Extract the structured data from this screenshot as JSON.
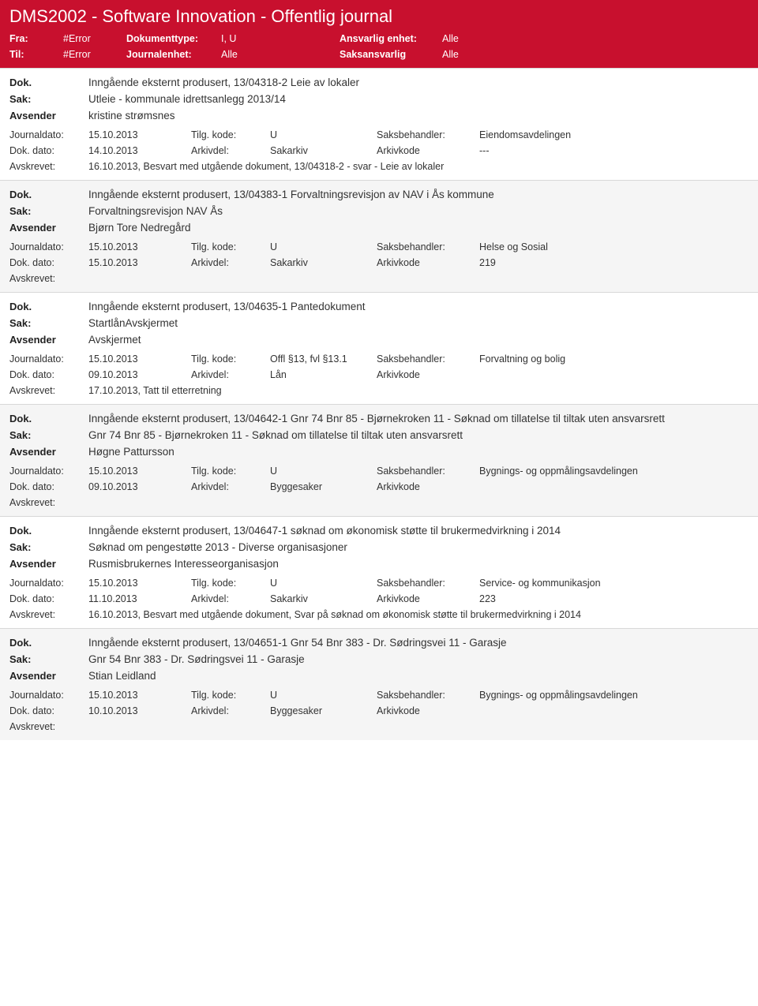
{
  "header": {
    "title": "DMS2002 - Software Innovation - Offentlig journal",
    "filters": {
      "fra_label": "Fra:",
      "fra_value": "#Error",
      "til_label": "Til:",
      "til_value": "#Error",
      "doktype_label": "Dokumenttype:",
      "doktype_value": "I, U",
      "journalenhet_label": "Journalenhet:",
      "journalenhet_value": "Alle",
      "ansvarlig_label": "Ansvarlig enhet:",
      "ansvarlig_value": "Alle",
      "saksansvarlig_label": "Saksansvarlig",
      "saksansvarlig_value": "Alle"
    }
  },
  "labels": {
    "dok": "Dok.",
    "sak": "Sak:",
    "avsender": "Avsender",
    "journaldato": "Journaldato:",
    "dokdato": "Dok. dato:",
    "avskrevet": "Avskrevet:",
    "tilgkode": "Tilg. kode:",
    "arkivdel": "Arkivdel:",
    "saksbehandler": "Saksbehandler:",
    "arkivkode": "Arkivkode"
  },
  "entries": [
    {
      "alt": false,
      "dok": "Inngående eksternt produsert, 13/04318-2 Leie av lokaler",
      "sak": "Utleie - kommunale idrettsanlegg 2013/14",
      "avsender": "kristine strømsnes",
      "journaldato": "15.10.2013",
      "tilgkode": "U",
      "saksbehandler": "Eiendomsavdelingen",
      "dokdato": "14.10.2013",
      "arkivdel": "Sakarkiv",
      "arkivkode": "---",
      "avskrevet": "16.10.2013, Besvart med utgående dokument, 13/04318-2 - svar - Leie av lokaler"
    },
    {
      "alt": true,
      "dok": "Inngående eksternt produsert, 13/04383-1 Forvaltningsrevisjon av NAV i Ås kommune",
      "sak": "Forvaltningsrevisjon NAV Ås",
      "avsender": "Bjørn Tore Nedregård",
      "journaldato": "15.10.2013",
      "tilgkode": "U",
      "saksbehandler": "Helse og Sosial",
      "dokdato": "15.10.2013",
      "arkivdel": "Sakarkiv",
      "arkivkode": "219",
      "avskrevet": ""
    },
    {
      "alt": false,
      "dok": "Inngående eksternt produsert, 13/04635-1 Pantedokument",
      "sak": "StartlånAvskjermet",
      "avsender": "Avskjermet",
      "journaldato": "15.10.2013",
      "tilgkode": "Offl §13, fvl §13.1",
      "saksbehandler": "Forvaltning og bolig",
      "dokdato": "09.10.2013",
      "arkivdel": "Lån",
      "arkivkode": "",
      "avskrevet": "17.10.2013, Tatt til etterretning"
    },
    {
      "alt": true,
      "dok": "Inngående eksternt produsert, 13/04642-1 Gnr 74 Bnr 85 - Bjørnekroken 11 - Søknad om tillatelse til tiltak uten ansvarsrett",
      "sak": "Gnr 74 Bnr 85 - Bjørnekroken 11 - Søknad om tillatelse til tiltak uten ansvarsrett",
      "avsender": "Høgne Pattursson",
      "journaldato": "15.10.2013",
      "tilgkode": "U",
      "saksbehandler": "Bygnings- og oppmålingsavdelingen",
      "dokdato": "09.10.2013",
      "arkivdel": "Byggesaker",
      "arkivkode": "",
      "avskrevet": ""
    },
    {
      "alt": false,
      "dok": "Inngående eksternt produsert, 13/04647-1 søknad om økonomisk støtte til brukermedvirkning i 2014",
      "sak": "Søknad om pengestøtte 2013 - Diverse organisasjoner",
      "avsender": "Rusmisbrukernes Interesseorganisasjon",
      "journaldato": "15.10.2013",
      "tilgkode": "U",
      "saksbehandler": "Service- og kommunikasjon",
      "dokdato": "11.10.2013",
      "arkivdel": "Sakarkiv",
      "arkivkode": "223",
      "avskrevet": "16.10.2013, Besvart med utgående dokument, Svar på søknad om økonomisk støtte til brukermedvirkning i 2014"
    },
    {
      "alt": true,
      "dok": "Inngående eksternt produsert, 13/04651-1 Gnr 54 Bnr 383 - Dr. Sødringsvei 11 - Garasje",
      "sak": "Gnr 54 Bnr 383 - Dr. Sødringsvei 11 - Garasje",
      "avsender": "Stian Leidland",
      "journaldato": "15.10.2013",
      "tilgkode": "U",
      "saksbehandler": "Bygnings- og oppmålingsavdelingen",
      "dokdato": "10.10.2013",
      "arkivdel": "Byggesaker",
      "arkivkode": "",
      "avskrevet": ""
    }
  ]
}
